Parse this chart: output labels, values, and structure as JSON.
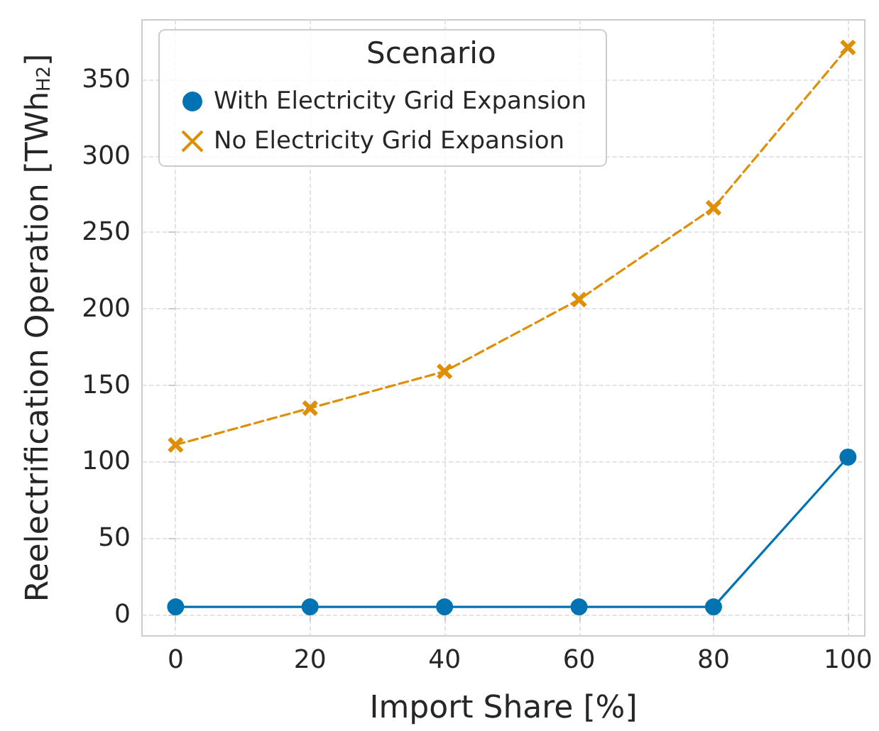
{
  "chart_data": {
    "type": "line",
    "xlabel": "Import Share [%]",
    "ylabel": "Reelectrification Operation [TWh$_{H2}$]",
    "legend_title": "Scenario",
    "x": [
      0,
      20,
      40,
      60,
      80,
      100
    ],
    "series": [
      {
        "name": "With Electricity Grid Expansion",
        "color": "#0173b2",
        "marker": "circle",
        "line_style": "solid",
        "values": [
          5,
          5,
          5,
          5,
          5,
          103
        ]
      },
      {
        "name": "No Electricity Grid Expansion",
        "color": "#de8f05",
        "marker": "cross",
        "line_style": "dashed",
        "values": [
          111,
          135,
          159,
          206,
          266,
          371
        ]
      }
    ],
    "xlim": [
      -5,
      102.5
    ],
    "xticks": [
      0,
      20,
      40,
      60,
      80,
      100
    ],
    "ylim": [
      -14,
      389
    ],
    "yticks": [
      0,
      50,
      100,
      150,
      200,
      250,
      300,
      350
    ],
    "grid": true,
    "legend": "top left"
  }
}
